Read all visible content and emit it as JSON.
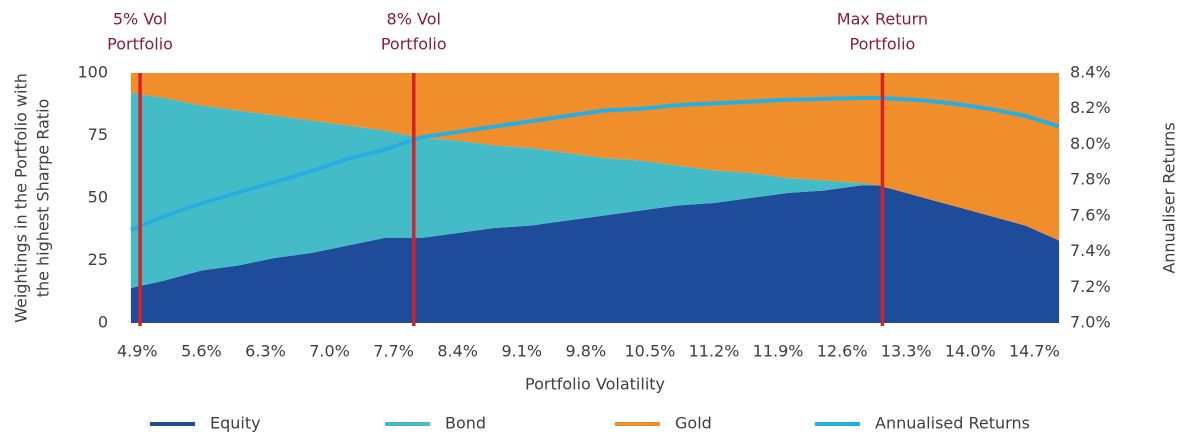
{
  "chart_data": {
    "type": "area",
    "x": [
      4.83,
      5.2,
      5.6,
      6.0,
      6.4,
      6.8,
      7.2,
      7.6,
      8.0,
      8.4,
      8.8,
      9.2,
      9.6,
      10.0,
      10.4,
      10.8,
      11.2,
      11.6,
      12.0,
      12.4,
      12.8,
      13.0,
      13.4,
      13.8,
      14.2,
      14.6,
      14.97
    ],
    "series": [
      {
        "name": "Equity",
        "color": "#1f4b9b",
        "values": [
          14,
          17,
          21,
          23,
          26,
          28,
          31,
          34,
          34,
          36,
          38,
          39,
          41,
          43,
          45,
          47,
          48,
          50,
          52,
          53,
          55,
          55,
          51,
          47,
          43,
          39,
          33
        ]
      },
      {
        "name": "Bond",
        "color": "#44bcc8",
        "values": [
          78,
          73,
          66,
          62,
          57,
          53,
          48,
          43,
          40,
          37,
          33,
          31,
          27,
          23,
          20,
          16,
          13,
          10,
          6,
          4,
          1,
          0,
          0,
          0,
          0,
          0,
          0
        ]
      },
      {
        "name": "Gold",
        "color": "#f18e2c",
        "values": [
          8,
          10,
          13,
          15,
          17,
          19,
          21,
          23,
          26,
          27,
          29,
          30,
          32,
          34,
          35,
          37,
          39,
          40,
          42,
          43,
          44,
          45,
          49,
          53,
          57,
          61,
          67
        ]
      },
      {
        "name": "Annualised Returns",
        "color": "#27aee0",
        "type": "line",
        "axis": "y2",
        "values": [
          7.52,
          7.6,
          7.67,
          7.73,
          7.79,
          7.85,
          7.92,
          7.97,
          8.04,
          8.07,
          8.1,
          8.13,
          8.16,
          8.19,
          8.2,
          8.22,
          8.23,
          8.24,
          8.25,
          8.255,
          8.26,
          8.26,
          8.25,
          8.23,
          8.2,
          8.16,
          8.1
        ]
      }
    ],
    "xlim": [
      4.82,
      14.98
    ],
    "xticks": [
      {
        "value": 4.9,
        "label": "4.9%"
      },
      {
        "value": 5.6,
        "label": "5.6%"
      },
      {
        "value": 6.3,
        "label": "6.3%"
      },
      {
        "value": 7.0,
        "label": "7.0%"
      },
      {
        "value": 7.7,
        "label": "7.7%"
      },
      {
        "value": 8.4,
        "label": "8.4%"
      },
      {
        "value": 9.1,
        "label": "9.1%"
      },
      {
        "value": 9.8,
        "label": "9.8%"
      },
      {
        "value": 10.5,
        "label": "10.5%"
      },
      {
        "value": 11.2,
        "label": "11.2%"
      },
      {
        "value": 11.9,
        "label": "11.9%"
      },
      {
        "value": 12.6,
        "label": "12.6%"
      },
      {
        "value": 13.3,
        "label": "13.3%"
      },
      {
        "value": 14.0,
        "label": "14.0%"
      },
      {
        "value": 14.7,
        "label": "14.7%"
      }
    ],
    "ylim": [
      0,
      100
    ],
    "yticks": [
      0,
      25,
      50,
      75,
      100
    ],
    "y2lim": [
      7.0,
      8.4
    ],
    "y2ticks": [
      {
        "value": 7.0,
        "label": "7.0%"
      },
      {
        "value": 7.2,
        "label": "7.2%"
      },
      {
        "value": 7.4,
        "label": "7.4%"
      },
      {
        "value": 7.6,
        "label": "7.6%"
      },
      {
        "value": 7.8,
        "label": "7.8%"
      },
      {
        "value": 8.0,
        "label": "8.0%"
      },
      {
        "value": 8.2,
        "label": "8.2%"
      },
      {
        "value": 8.4,
        "label": "8.4%"
      }
    ],
    "x_label": "Portfolio Volatility",
    "y_label": [
      "Weightings in the Portfolio with",
      "the highest Sharpe Ratio"
    ],
    "y2_label": "Annualiser Returns",
    "marker_color": "#d3222a",
    "annotations": [
      {
        "x": 4.93,
        "text": [
          "5% Vol",
          "Portfolio"
        ]
      },
      {
        "x": 7.92,
        "text": [
          "8% Vol",
          "Portfolio"
        ]
      },
      {
        "x": 13.04,
        "text": [
          "Max Return",
          "Portfolio"
        ]
      }
    ],
    "legend": "bottom"
  }
}
